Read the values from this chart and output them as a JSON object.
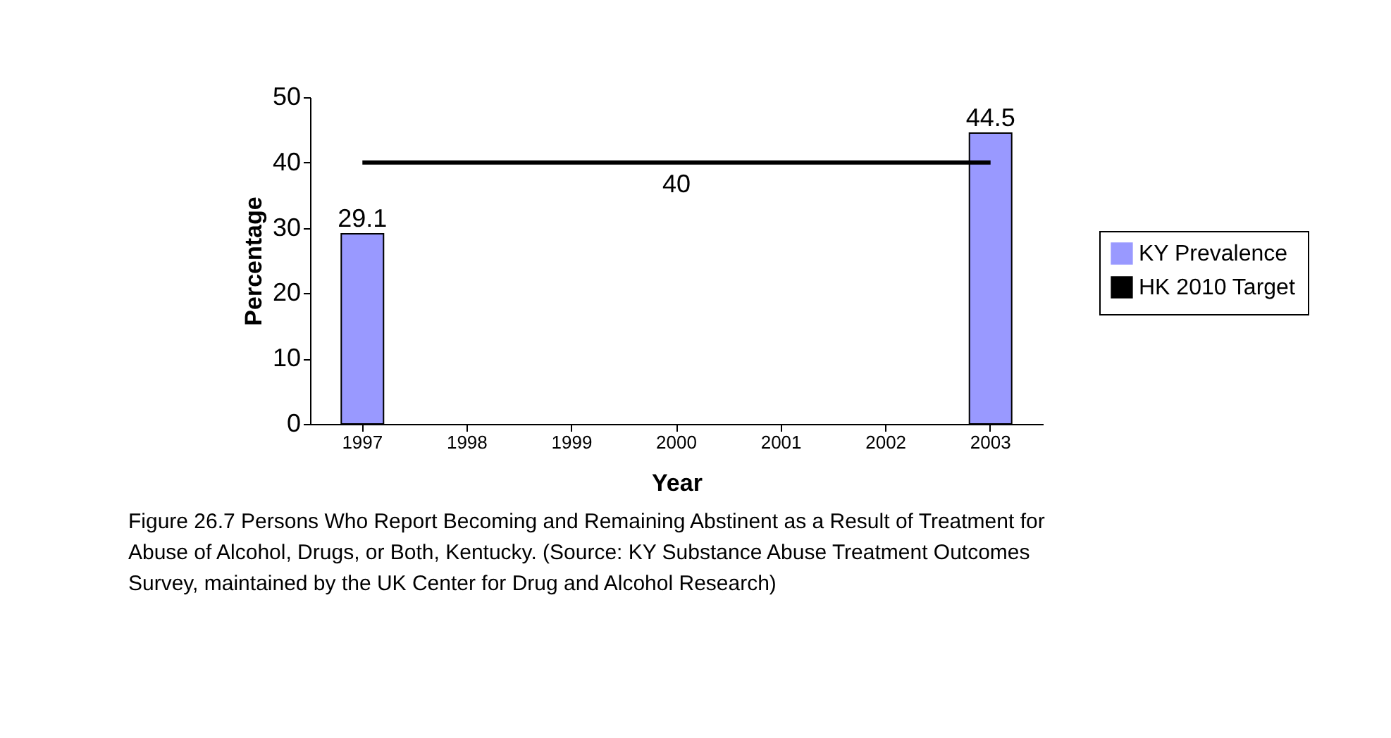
{
  "chart_data": {
    "type": "bar",
    "xlabel": "Year",
    "ylabel": "Percentage",
    "categories": [
      "1997",
      "1998",
      "1999",
      "2000",
      "2001",
      "2002",
      "2003"
    ],
    "series": [
      {
        "name": "KY Prevalence",
        "color": "#9999ff",
        "values": [
          29.1,
          null,
          null,
          null,
          null,
          null,
          44.5
        ],
        "value_labels": [
          "29.1",
          null,
          null,
          null,
          null,
          null,
          "44.5"
        ]
      },
      {
        "name": "HK 2010 Target",
        "type": "line",
        "color": "#000000",
        "values": [
          40,
          40,
          40,
          40,
          40,
          40,
          40
        ],
        "value_labels": [
          null,
          null,
          null,
          "40",
          null,
          null,
          null
        ]
      }
    ],
    "ylim": [
      0,
      50
    ],
    "yticks": [
      0,
      10,
      20,
      30,
      40,
      50
    ],
    "grid": false,
    "legend": "right",
    "annotations": [
      "Figure 26.7 Persons Who Report Becoming and Remaining Abstinent as a Result of Treatment for Abuse of Alcohol, Drugs, or Both, Kentucky.  (Source:  KY Substance Abuse Treatment Outcomes Survey, maintained by the UK Center for Drug and Alcohol Research)"
    ]
  }
}
